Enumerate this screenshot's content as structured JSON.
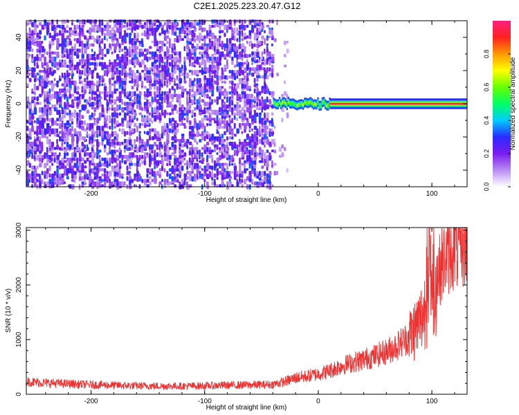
{
  "figure": {
    "title": "C2E1.2025.223.20.47.G12"
  },
  "chart_data": [
    {
      "type": "heatmap",
      "xlabel": "Height of straight line (km)",
      "ylabel": "Frequency (Hz)",
      "xlim": [
        -257,
        131
      ],
      "ylim": [
        -50,
        50
      ],
      "xticks": [
        -200,
        -100,
        0,
        100
      ],
      "yticks": [
        -40,
        -20,
        0,
        20,
        40
      ],
      "grid": false,
      "regions": [
        {
          "description": "diffuse noise",
          "x_range": [
            -257,
            -40
          ],
          "y_range": [
            -50,
            50
          ],
          "normalized_amplitude": 0.1
        },
        {
          "description": "signal onset",
          "x_range": [
            -40,
            10
          ],
          "y_center": 0,
          "y_halfwidth": 3,
          "normalized_amplitude": 0.5
        },
        {
          "description": "carrier line",
          "x_range": [
            10,
            131
          ],
          "y_center": 0,
          "y_halfwidth": 2,
          "normalized_amplitude": 0.95
        }
      ],
      "colorbar": {
        "label": "Normalized spectral amplitude",
        "ticks": [
          "0.0",
          "0.2",
          "0.4",
          "0.6",
          "0.8"
        ],
        "range": [
          0,
          1
        ],
        "colors": [
          "#ffffff",
          "#b98cf2",
          "#7a1bf0",
          "#2b2bff",
          "#00ccff",
          "#00ff66",
          "#66ff00",
          "#ffff00",
          "#ff9900",
          "#ff2020",
          "#ff2080"
        ]
      }
    },
    {
      "type": "line",
      "xlabel": "Height of straight line (km)",
      "ylabel": "SNR (10 * v/v)",
      "xlim": [
        -257,
        131
      ],
      "ylim": [
        0,
        3050
      ],
      "xticks": [
        -200,
        -100,
        0,
        100
      ],
      "yticks": [
        0,
        1000,
        2000,
        3000
      ],
      "grid": false,
      "color": "#ee3333",
      "x": [
        -257,
        -240,
        -220,
        -200,
        -180,
        -160,
        -140,
        -120,
        -100,
        -80,
        -60,
        -40,
        -30,
        -20,
        -10,
        0,
        10,
        20,
        30,
        40,
        50,
        60,
        70,
        80,
        90,
        100,
        110,
        120,
        131
      ],
      "y": [
        230,
        210,
        190,
        175,
        165,
        155,
        150,
        150,
        155,
        165,
        170,
        180,
        230,
        300,
        330,
        370,
        430,
        520,
        580,
        640,
        700,
        780,
        900,
        1060,
        1350,
        1900,
        2450,
        2650,
        2720
      ]
    }
  ]
}
